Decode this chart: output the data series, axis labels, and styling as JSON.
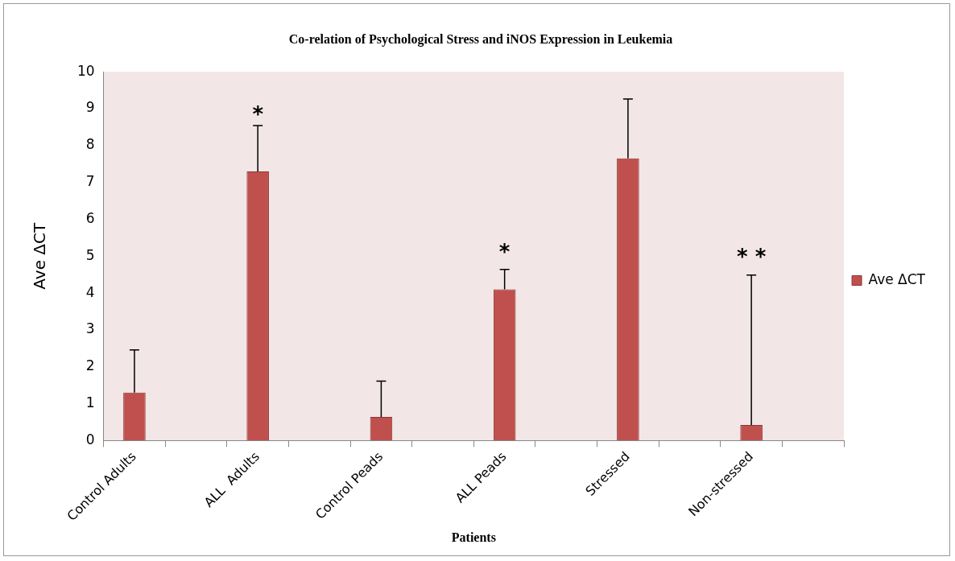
{
  "chart_data": {
    "type": "bar",
    "title": "Co-relation of Psychological Stress and iNOS Expression in Leukemia",
    "xlabel": "Patients",
    "ylabel": "Ave ΔCT",
    "categories": [
      "Control Adults",
      null,
      "ALL  Adults",
      null,
      "Control Peads",
      null,
      "ALL Peads",
      null,
      "Stressed",
      null,
      "Non-stressed",
      null
    ],
    "series": [
      {
        "name": "Ave ΔCT",
        "color": "#c0504d",
        "values": [
          1.3,
          null,
          7.3,
          null,
          0.64,
          null,
          4.1,
          null,
          7.65,
          null,
          0.42,
          null
        ],
        "errors": [
          [
            1.3,
            2.46
          ],
          null,
          [
            7.3,
            8.54
          ],
          null,
          [
            0.64,
            1.61
          ],
          null,
          [
            4.1,
            4.64
          ],
          null,
          [
            7.65,
            9.26
          ],
          null,
          [
            0.42,
            4.49
          ],
          null
        ]
      }
    ],
    "ylim": [
      0,
      10
    ],
    "yticks": [
      0,
      1,
      2,
      3,
      4,
      5,
      6,
      7,
      8,
      9,
      10
    ],
    "legend": "right",
    "annotations": [
      "*",
      "*",
      "* *"
    ]
  }
}
